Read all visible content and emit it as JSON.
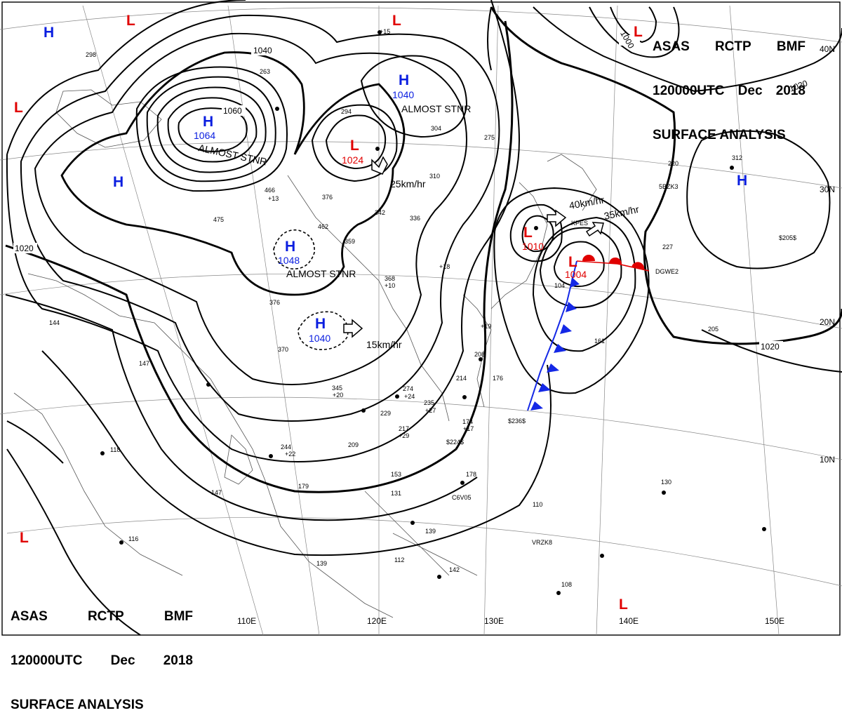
{
  "header_top": {
    "line1": [
      "ASAS",
      "RCTP",
      "BMF"
    ],
    "line2": [
      "120000UTC",
      "Dec",
      "2018"
    ],
    "line3": "SURFACE ANALYSIS"
  },
  "header_bottom": {
    "line1": [
      "ASAS",
      "RCTP",
      "BMF"
    ],
    "line2": [
      "120000UTC",
      "Dec",
      "2018"
    ],
    "line3": "SURFACE ANALYSIS"
  },
  "colors": {
    "high": "#0a1ee0",
    "low": "#e00000",
    "isobar": "#000000",
    "cold_front": "#1428e6",
    "warm_front": "#e00000",
    "grid": "#888888"
  },
  "longitude_labels": [
    "110E",
    "120E",
    "130E",
    "140E",
    "150E"
  ],
  "latitude_labels": [
    "40N",
    "30N",
    "20N",
    "10N"
  ],
  "isobar_labels": [
    "1040",
    "1060",
    "1020",
    "1020",
    "1020",
    "1000"
  ],
  "pressure_centers": [
    {
      "id": "h-nw",
      "type": "H"
    },
    {
      "id": "l-nw-top",
      "type": "L"
    },
    {
      "id": "l-north",
      "type": "L"
    },
    {
      "id": "l-ne",
      "type": "L"
    },
    {
      "id": "l-west",
      "type": "L"
    },
    {
      "id": "h-1040-north",
      "type": "H",
      "value": "1040",
      "note": "ALMOST STNR"
    },
    {
      "id": "h-1064",
      "type": "H",
      "value": "1064",
      "note": "ALMOST STNR"
    },
    {
      "id": "l-1024",
      "type": "L",
      "value": "1024",
      "motion": "25km/hr"
    },
    {
      "id": "h-west",
      "type": "H"
    },
    {
      "id": "h-1048",
      "type": "H",
      "value": "1048",
      "note": "ALMOST STNR"
    },
    {
      "id": "h-1040-south",
      "type": "H",
      "value": "1040",
      "motion": "15km/hr"
    },
    {
      "id": "l-1010",
      "type": "L",
      "value": "1010",
      "motion": "40km/hr"
    },
    {
      "id": "l-1004",
      "type": "L",
      "value": "1004",
      "motion": "35km/hr"
    },
    {
      "id": "h-east",
      "type": "H"
    },
    {
      "id": "l-sw",
      "type": "L"
    },
    {
      "id": "l-se",
      "type": "L"
    }
  ],
  "station_labels": [
    "KPES",
    "5BZK3",
    "DGWE2",
    "$236$",
    "$224$",
    "C6V05",
    "VRZK8",
    "$205$"
  ],
  "station_values": [
    "298",
    "263",
    "294",
    "304",
    "275",
    "310",
    "466",
    "475",
    "376",
    "462",
    "359",
    "342",
    "336",
    "368",
    "376",
    "370",
    "345",
    "274",
    "229",
    "235",
    "217",
    "209",
    "244",
    "174",
    "208",
    "214",
    "176",
    "153",
    "131",
    "139",
    "112",
    "142",
    "139",
    "110",
    "130",
    "118",
    "144",
    "147",
    "179",
    "147",
    "116",
    "220",
    "312",
    "227",
    "205",
    "161",
    "104",
    "178",
    "108",
    "+15",
    "+13",
    "+20",
    "+24",
    "+22",
    "+17",
    "+19",
    "+10",
    "+18",
    "+27",
    "+29"
  ]
}
